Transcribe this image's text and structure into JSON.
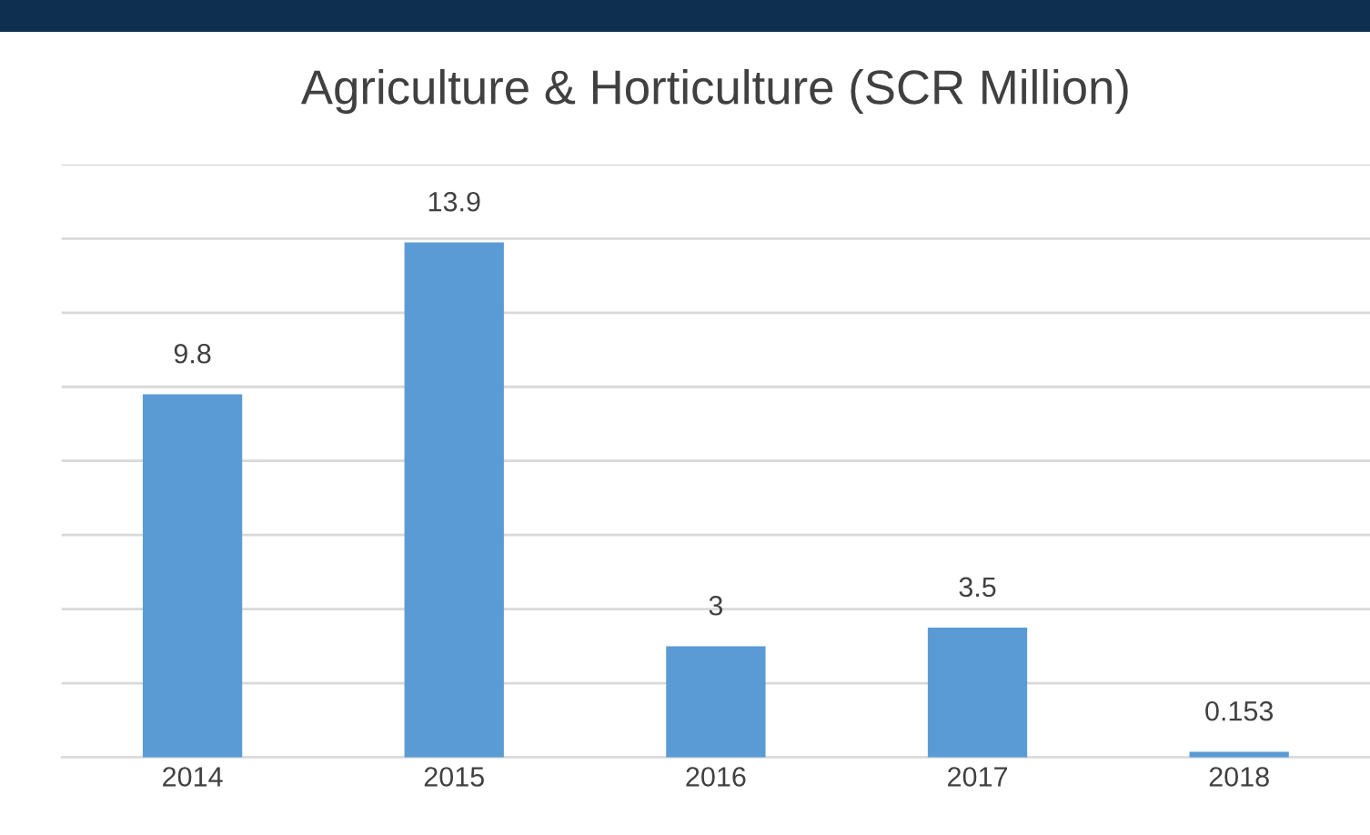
{
  "chart_data": {
    "type": "bar",
    "title": "Agriculture & Horticulture (SCR Million)",
    "categories": [
      "2014",
      "2015",
      "2016",
      "2017",
      "2018"
    ],
    "values": [
      9.8,
      13.9,
      3,
      3.5,
      0.153
    ],
    "color": "#5b9bd5",
    "data_labels": true,
    "ylim": [
      0,
      16
    ],
    "yticks": [
      {
        "value": 0,
        "label": null
      },
      {
        "value": 2,
        "label": null
      },
      {
        "value": 4,
        "label": null
      },
      {
        "value": 6,
        "label": null
      },
      {
        "value": 8,
        "label": null
      },
      {
        "value": 10,
        "label": null
      },
      {
        "value": 12,
        "label": null
      },
      {
        "value": 14,
        "label": null
      },
      {
        "value": 16,
        "label": null
      }
    ],
    "grid": "y",
    "tick_labels": "x"
  }
}
